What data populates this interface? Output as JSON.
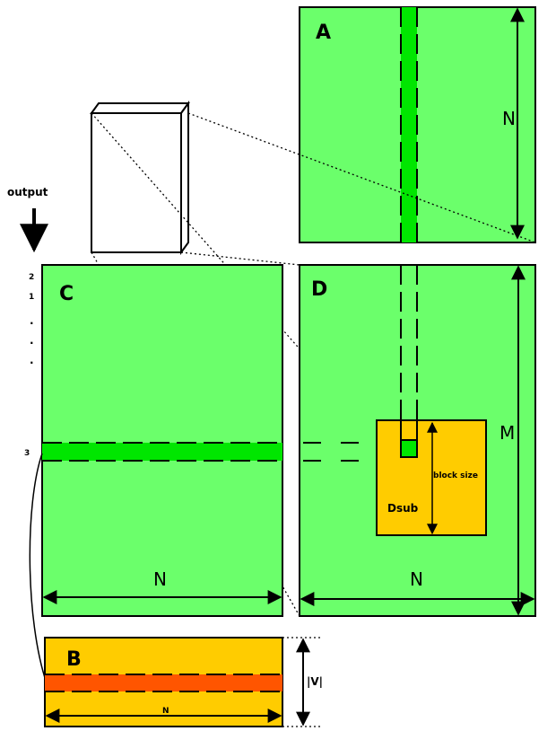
{
  "matrices": {
    "A": {
      "label": "A",
      "dim": "N"
    },
    "C": {
      "label": "C",
      "dim": "N"
    },
    "D": {
      "label": "D",
      "dim_rows": "M",
      "dim_cols": "N"
    },
    "B": {
      "label": "B",
      "dim_rows": "|V|",
      "dim_cols": "N"
    }
  },
  "submatrix": {
    "label": "Dsub",
    "size_label": "block size"
  },
  "output": {
    "label": "output",
    "row_indices": [
      "2",
      "1",
      ".",
      ".",
      ".",
      "3"
    ]
  },
  "colors": {
    "matrix_green": "#6bff6b",
    "highlight_green": "#00e600",
    "block_orange": "#ffcc00",
    "row_red": "#ff5500",
    "border": "#000000"
  }
}
